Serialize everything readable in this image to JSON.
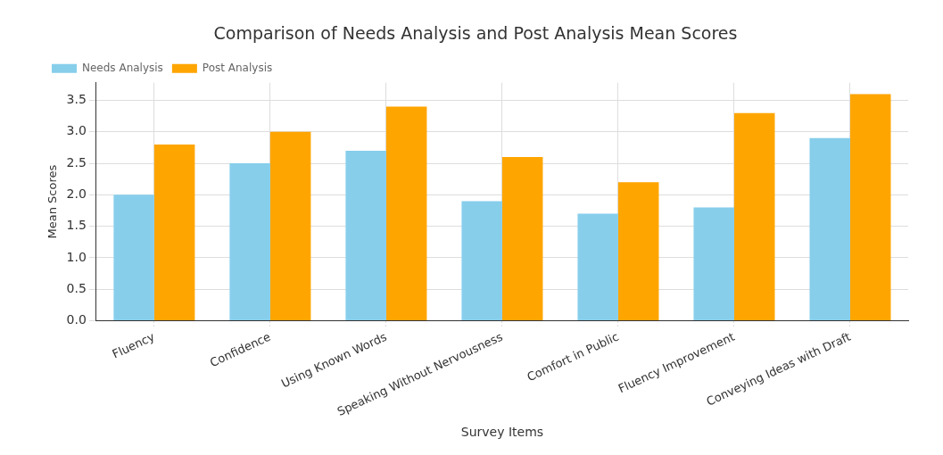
{
  "chart_data": {
    "type": "bar",
    "title": "Comparison of Needs Analysis and Post Analysis Mean Scores",
    "xlabel": "Survey Items",
    "ylabel": "Mean Scores",
    "categories": [
      "Fluency",
      "Confidence",
      "Using Known Words",
      "Speaking Without Nervousness",
      "Comfort in Public",
      "Fluency Improvement",
      "Conveying Ideas with Draft"
    ],
    "series": [
      {
        "name": "Needs Analysis",
        "color": "#87ceeb",
        "values": [
          2.0,
          2.5,
          2.7,
          1.9,
          1.7,
          1.8,
          2.9
        ]
      },
      {
        "name": "Post Analysis",
        "color": "#ffa500",
        "values": [
          2.8,
          3.0,
          3.4,
          2.6,
          2.2,
          3.3,
          3.6
        ]
      }
    ],
    "ylim": [
      0,
      3.78
    ],
    "yticks": [
      {
        "value": 0,
        "label": "0.0"
      },
      0.5,
      {
        "value": 1,
        "label": "1.0"
      },
      1.5,
      {
        "value": 2,
        "label": "2.0"
      },
      2.5,
      {
        "value": 3,
        "label": "3.0"
      },
      3.5
    ],
    "grid": true,
    "legend": "top left"
  }
}
